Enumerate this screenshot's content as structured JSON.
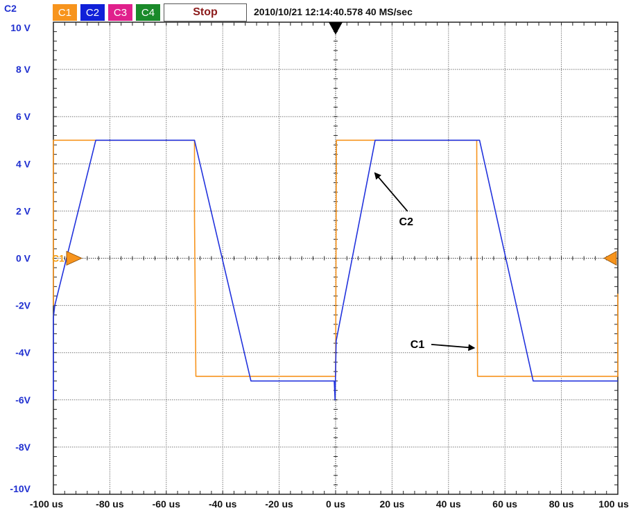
{
  "toolbar": {
    "channel_indicator": "C2",
    "channels": [
      {
        "label": "C1",
        "color": "#f7941d"
      },
      {
        "label": "C2",
        "color": "#1020d8"
      },
      {
        "label": "C3",
        "color": "#e0208c"
      },
      {
        "label": "C4",
        "color": "#1a8a2a"
      }
    ],
    "stop_label": "Stop",
    "timestamp": "2010/10/21 12:14:40.578",
    "sample_rate": "40 MS/sec"
  },
  "chart_data": {
    "type": "line",
    "xlim": [
      -100,
      100
    ],
    "ylim": [
      -10,
      10
    ],
    "grid": true,
    "x_tick_labels": [
      "-100 us",
      "-80 us",
      "-60 us",
      "-40 us",
      "-20 us",
      "0 us",
      "20 us",
      "40 us",
      "60 us",
      "80 us",
      "100 us"
    ],
    "y_tick_labels": [
      "10 V",
      "8 V",
      "6 V",
      "4 V",
      "2 V",
      "0 V",
      "-2V",
      "-4V",
      "-6V",
      "-8V",
      "-10V"
    ],
    "series": [
      {
        "name": "C1",
        "color": "#f7941d",
        "x": [
          -100,
          -100,
          -50,
          -50,
          -49.5,
          0,
          0.3,
          50,
          50.3,
          100,
          100
        ],
        "y": [
          -2,
          5,
          5,
          1.7,
          -5,
          -5,
          5,
          5,
          -5,
          -5,
          -1.5
        ]
      },
      {
        "name": "C2",
        "color": "#2233dd",
        "x": [
          -100,
          -100,
          -99.5,
          -85,
          -50,
          -30,
          -0.5,
          -0.2,
          0.2,
          1,
          14,
          51,
          70,
          100
        ],
        "y": [
          -6,
          -2.5,
          -2,
          5,
          5,
          -5.2,
          -5.2,
          -6,
          -3.5,
          -3,
          5,
          5,
          -5.2,
          -5.2
        ]
      }
    ],
    "annotations": [
      {
        "text": "C2",
        "x": 25,
        "y": 1.4,
        "arrow_to": [
          14,
          3.6
        ]
      },
      {
        "text": "C1",
        "x": 29,
        "y": -3.8,
        "arrow_to": [
          49,
          -3.8
        ]
      }
    ],
    "trigger_marker": {
      "x": 0
    },
    "level_markers": [
      {
        "label": "C1",
        "y": 0,
        "side": "left"
      },
      {
        "side": "right",
        "y": 0
      }
    ]
  }
}
